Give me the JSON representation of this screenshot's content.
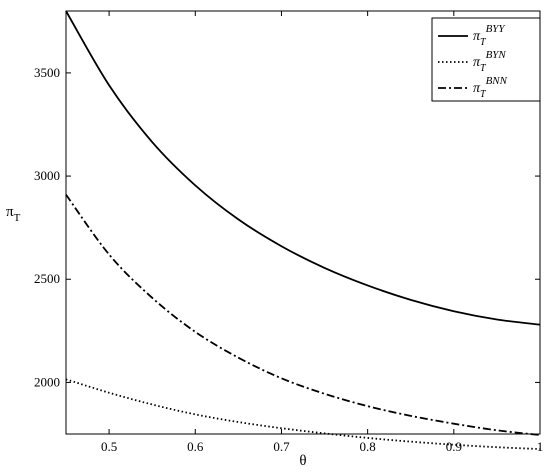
{
  "chart_data": {
    "type": "line",
    "xlabel": "θ",
    "ylabel": {
      "base": "π",
      "sub": "T"
    },
    "xlim": [
      0.45,
      1.0
    ],
    "ylim": [
      1750,
      3800
    ],
    "xticks": [
      0.5,
      0.6,
      0.7,
      0.8,
      0.9,
      1
    ],
    "xtick_labels": [
      "0.5",
      "0.6",
      "0.7",
      "0.8",
      "0.9",
      "1"
    ],
    "yticks": [
      2000,
      2500,
      3000,
      3500
    ],
    "ytick_labels": [
      "2000",
      "2500",
      "3000",
      "3500"
    ],
    "grid": false,
    "legend_position": "top-right",
    "x": [
      0.45,
      0.5,
      0.55,
      0.6,
      0.65,
      0.7,
      0.75,
      0.8,
      0.85,
      0.9,
      0.95,
      1.0
    ],
    "series": [
      {
        "name": {
          "base": "π",
          "sub": "T",
          "sup": "BYY"
        },
        "style": "solid",
        "values": [
          3800,
          3440,
          3165,
          2955,
          2790,
          2660,
          2555,
          2470,
          2400,
          2345,
          2305,
          2280
        ]
      },
      {
        "name": {
          "base": "π",
          "sub": "T",
          "sup": "BYN"
        },
        "style": "dotted",
        "values": [
          2015,
          1950,
          1893,
          1845,
          1808,
          1778,
          1753,
          1731,
          1713,
          1698,
          1686,
          1677
        ]
      },
      {
        "name": {
          "base": "π",
          "sub": "T",
          "sup": "BNN"
        },
        "style": "dashdot",
        "values": [
          2910,
          2620,
          2410,
          2245,
          2120,
          2020,
          1945,
          1885,
          1838,
          1800,
          1768,
          1745
        ]
      }
    ]
  }
}
